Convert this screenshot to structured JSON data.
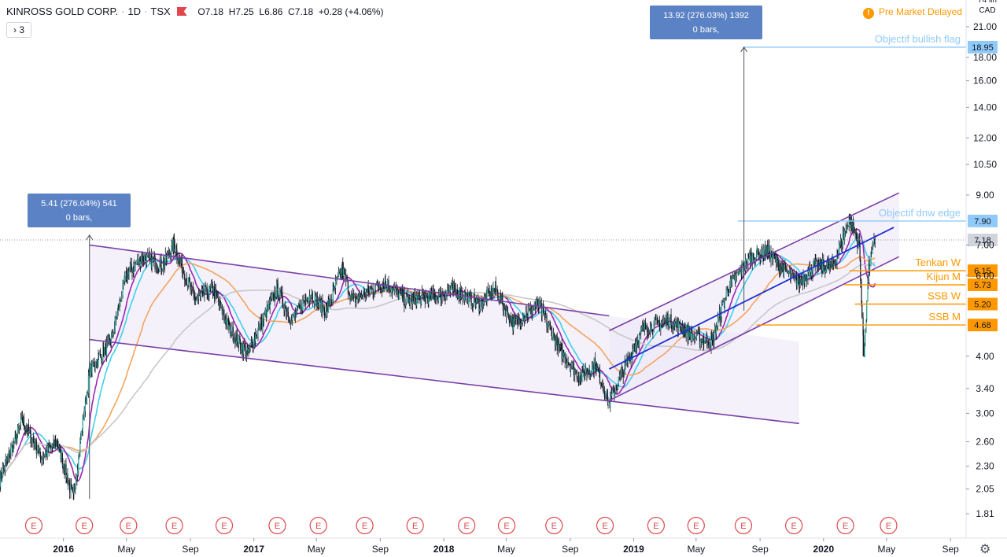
{
  "header": {
    "symbol": "KINROSS GOLD CORP.",
    "interval": "1D",
    "exchange": "TSX",
    "open": "O7.18",
    "high": "H7.25",
    "low": "L6.86",
    "close": "C7.18",
    "change": "+0.28 (+4.06%)",
    "indicators_toggle": "› 3"
  },
  "status": {
    "text": "Pre Market  Delayed",
    "icon_glyph": "!"
  },
  "currency": {
    "top": "74 lin",
    "unit": "CAD"
  },
  "colors": {
    "candle": "#131722",
    "channel": "#7b3fa8",
    "channel_fill": "#ece7f6",
    "blue_trend": "#1d2fd6",
    "orange": "#ff9800",
    "light_blue": "#90caf9",
    "ma_cyan": "#40d0e8",
    "ma_purple": "#9c27b0",
    "ma_orange": "#f4a460",
    "ma_gray": "#c8c8c8",
    "callout": "#5b82c4"
  },
  "chart_data": {
    "type": "candlestick",
    "title": "KINROSS GOLD CORP., 1D, TSX",
    "y_scale": "log",
    "y_ticks": [
      "21.00",
      "18.00",
      "16.00",
      "14.00",
      "12.00",
      "10.50",
      "9.00",
      "7.00",
      "6.00",
      "4.00",
      "3.40",
      "3.00",
      "2.60",
      "2.30",
      "2.05",
      "1.81"
    ],
    "x_ticks": [
      "2016",
      "May",
      "Sep",
      "2017",
      "May",
      "Sep",
      "2018",
      "May",
      "Sep",
      "2019",
      "May",
      "Sep",
      "2020",
      "May",
      "Sep"
    ],
    "x_ticks_bold": [
      true,
      false,
      false,
      true,
      false,
      false,
      true,
      false,
      false,
      true,
      false,
      false,
      true,
      false,
      false
    ],
    "price_path": [
      [
        "2015-09-01",
        2.15
      ],
      [
        "2015-10-15",
        2.9
      ],
      [
        "2015-11-20",
        2.4
      ],
      [
        "2015-12-20",
        2.6
      ],
      [
        "2016-01-20",
        1.95
      ],
      [
        "2016-02-20",
        3.7
      ],
      [
        "2016-04-01",
        4.3
      ],
      [
        "2016-05-01",
        6.0
      ],
      [
        "2016-06-01",
        6.6
      ],
      [
        "2016-07-10",
        6.3
      ],
      [
        "2016-08-01",
        7.0
      ],
      [
        "2016-09-10",
        5.3
      ],
      [
        "2016-10-15",
        5.6
      ],
      [
        "2016-11-15",
        4.6
      ],
      [
        "2016-12-20",
        4.05
      ],
      [
        "2017-02-15",
        5.6
      ],
      [
        "2017-03-15",
        4.8
      ],
      [
        "2017-04-20",
        5.5
      ],
      [
        "2017-05-20",
        5.0
      ],
      [
        "2017-06-20",
        6.2
      ],
      [
        "2017-07-10",
        5.3
      ],
      [
        "2017-09-10",
        5.8
      ],
      [
        "2017-10-20",
        5.3
      ],
      [
        "2017-12-15",
        5.4
      ],
      [
        "2018-01-20",
        5.6
      ],
      [
        "2018-03-10",
        5.2
      ],
      [
        "2018-04-10",
        5.6
      ],
      [
        "2018-05-15",
        4.7
      ],
      [
        "2018-07-01",
        5.2
      ],
      [
        "2018-08-15",
        4.1
      ],
      [
        "2018-09-20",
        3.6
      ],
      [
        "2018-10-20",
        3.85
      ],
      [
        "2018-11-15",
        3.15
      ],
      [
        "2018-12-20",
        3.9
      ],
      [
        "2019-01-20",
        4.6
      ],
      [
        "2019-03-10",
        4.8
      ],
      [
        "2019-05-01",
        4.4
      ],
      [
        "2019-06-01",
        4.3
      ],
      [
        "2019-07-01",
        5.6
      ],
      [
        "2019-08-15",
        6.6
      ],
      [
        "2019-09-15",
        6.8
      ],
      [
        "2019-10-15",
        6.2
      ],
      [
        "2019-11-15",
        5.8
      ],
      [
        "2019-12-15",
        6.3
      ],
      [
        "2020-01-20",
        6.3
      ],
      [
        "2020-02-20",
        8.0
      ],
      [
        "2020-03-10",
        7.0
      ],
      [
        "2020-03-19",
        4.0
      ],
      [
        "2020-03-28",
        6.2
      ],
      [
        "2020-04-09",
        7.18
      ]
    ],
    "moving_averages": [
      {
        "color": "ma_cyan",
        "window": 34
      },
      {
        "color": "ma_purple",
        "window": 21
      },
      {
        "color": "ma_orange",
        "window": 90
      },
      {
        "color": "ma_gray",
        "window": 200
      }
    ],
    "channels": [
      {
        "name": "descending",
        "upper": [
          [
            "2016-02-20",
            7.0
          ],
          [
            "2018-11-15",
            4.9
          ]
        ],
        "lower": [
          [
            "2016-02-20",
            4.35
          ],
          [
            "2019-11-15",
            2.85
          ]
        ],
        "extend_to": "2019-11-15"
      },
      {
        "name": "ascending",
        "upper": [
          [
            "2018-11-15",
            4.55
          ],
          [
            "2020-05-25",
            9.1
          ]
        ],
        "lower": [
          [
            "2018-11-15",
            3.2
          ],
          [
            "2020-05-25",
            6.6
          ]
        ],
        "extend_to": "2020-05-25"
      }
    ],
    "blue_trendline": [
      [
        "2018-11-15",
        3.75
      ],
      [
        "2020-05-15",
        7.65
      ]
    ],
    "levels": [
      {
        "label": "Objectif bullish flag",
        "value": 18.95,
        "tag": "18.95",
        "color": "light_blue",
        "from": "2019-08-01"
      },
      {
        "label": "Objectif dnw edge",
        "value": 7.9,
        "tag": "7.90",
        "color": "light_blue",
        "from": "2019-07-20"
      },
      {
        "label": "Tenkan W",
        "value": 6.15,
        "tag": "6.15",
        "color": "orange",
        "from": "2020-02-20"
      },
      {
        "label": "Kijun M",
        "value": 5.73,
        "tag": "5.73",
        "color": "orange",
        "from": "2020-02-10"
      },
      {
        "label": "SSB W",
        "value": 5.2,
        "tag": "5.20",
        "color": "orange",
        "from": "2020-03-01"
      },
      {
        "label": "SSB M",
        "value": 4.68,
        "tag": "4.68",
        "color": "orange",
        "from": "2019-08-25"
      }
    ],
    "last_price": {
      "value": 7.18,
      "tag": "7.18"
    },
    "measures": [
      {
        "label_line1": "5.41 (276.04%) 541",
        "label_line2": "0 bars,",
        "x": "2016-02-20",
        "from": 1.95,
        "to": 7.36
      },
      {
        "label_line1": "13.92 (276.03%) 1392",
        "label_line2": "0 bars,",
        "x": "2019-08-01",
        "from": 5.03,
        "to": 18.95
      }
    ],
    "earnings": {
      "glyph": "E",
      "dates": [
        "2015-11-05",
        "2016-02-10",
        "2016-05-05",
        "2016-08-01",
        "2016-11-05",
        "2017-02-15",
        "2017-05-05",
        "2017-08-02",
        "2017-11-07",
        "2018-02-14",
        "2018-05-02",
        "2018-08-01",
        "2018-11-07",
        "2019-02-13",
        "2019-05-01",
        "2019-07-31",
        "2019-11-05",
        "2020-02-12",
        "2020-05-05"
      ]
    }
  }
}
